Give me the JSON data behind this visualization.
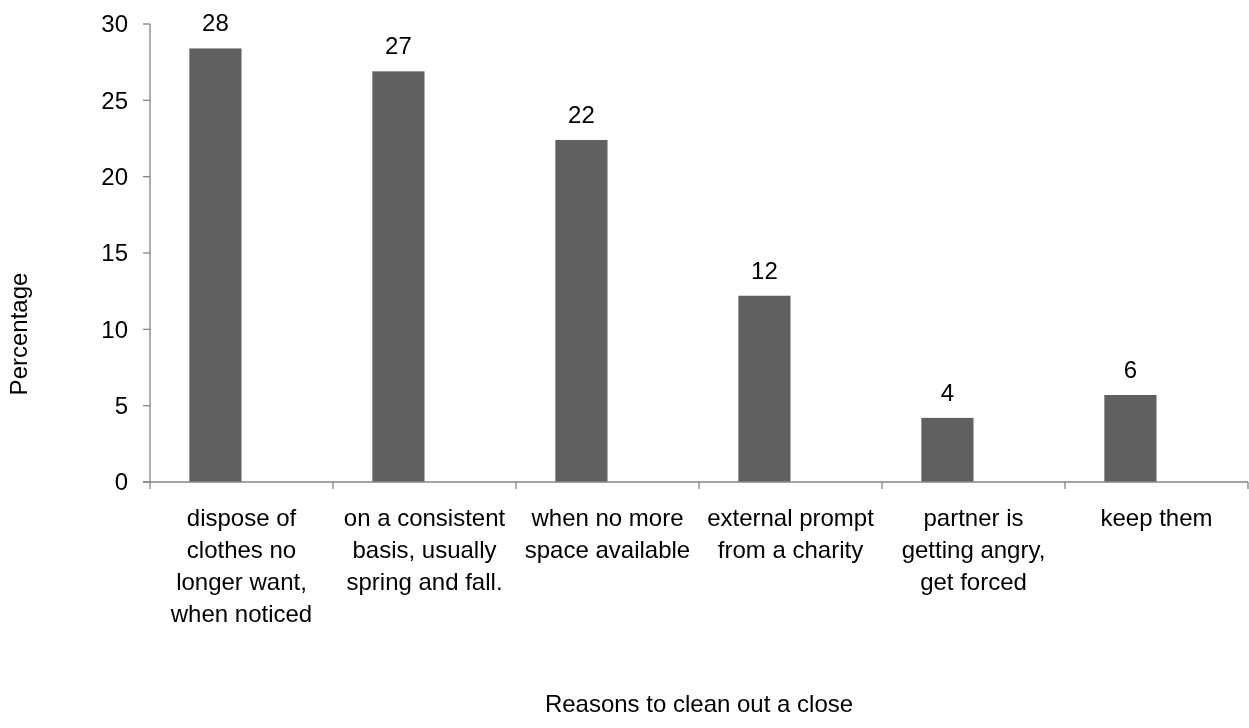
{
  "chart_data": {
    "type": "bar",
    "xlabel": "Reasons to clean out a close",
    "ylabel": "Percentage",
    "categories": [
      "dispose of clothes no longer want, when noticed",
      "on a consistent basis, usually spring and fall.",
      "when no more space available",
      "external prompt from a charity",
      "partner is getting angry, get forced",
      "keep them"
    ],
    "values": [
      28.4,
      26.9,
      22.4,
      12.2,
      4.2,
      5.7
    ],
    "value_labels": [
      "28",
      "27",
      "22",
      "12",
      "4",
      "6"
    ],
    "color": "#606060",
    "ylim": [
      0,
      30
    ],
    "yticks": [
      0,
      5,
      10,
      15,
      20,
      25,
      30
    ]
  }
}
